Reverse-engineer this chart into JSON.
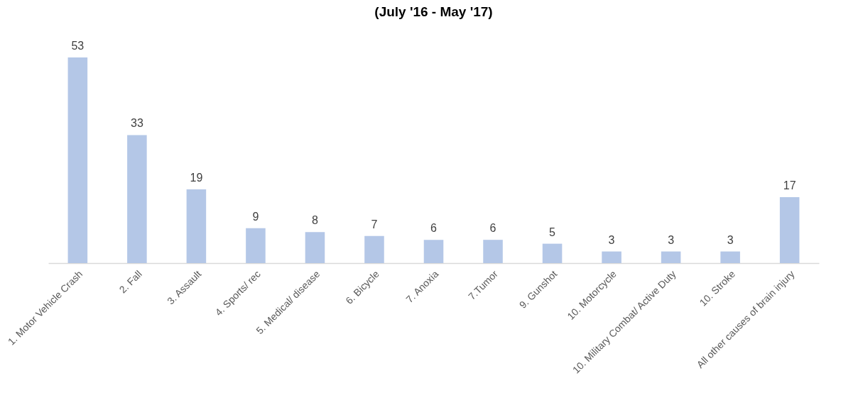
{
  "chart_data": {
    "type": "bar",
    "title": "(July '16 - May '17)",
    "categories": [
      "1. Motor Vehicle Crash",
      "2. Fall",
      "3. Assault",
      "4. Sports/ rec",
      "5. Medical/ disease",
      "6. Bicycle",
      "7. Anoxia",
      "7.Tumor",
      "9. Gunshot",
      "10. Motorcycle",
      "10. Military Combat/ Active Duty",
      "10. Stroke",
      "All other causes of brain injury"
    ],
    "values": [
      53,
      33,
      19,
      9,
      8,
      7,
      6,
      6,
      5,
      3,
      3,
      3,
      17
    ],
    "color": "#b4c7e7",
    "data_labels": true
  }
}
